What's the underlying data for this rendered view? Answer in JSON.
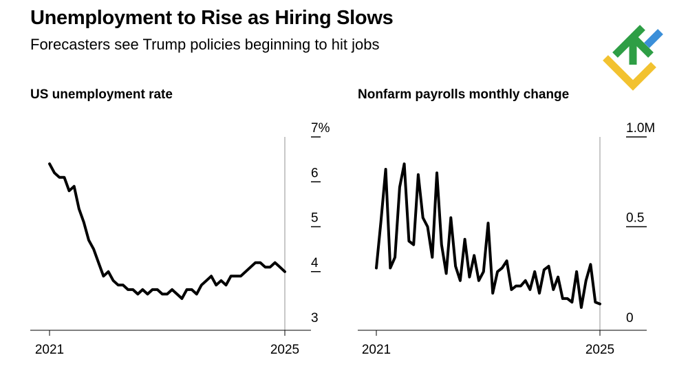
{
  "header": {
    "title": "Unemployment to Rise as Hiring Slows",
    "subtitle": "Forecasters see Trump policies beginning to hit jobs"
  },
  "logo": {
    "icon": "brand-logo-icon",
    "colors": [
      "#2e9e45",
      "#3b8fd9",
      "#f2c230"
    ]
  },
  "chart_data": [
    {
      "type": "line",
      "title": "US unemployment rate",
      "xlabel": "",
      "ylabel": "",
      "xlim": [
        2021.0,
        2025.0
      ],
      "ylim": [
        3,
        7
      ],
      "y_ticks": [
        {
          "value": 7,
          "label": "7%"
        },
        {
          "value": 6,
          "label": "6"
        },
        {
          "value": 5,
          "label": "5"
        },
        {
          "value": 4,
          "label": "4"
        },
        {
          "value": 3,
          "label": "3"
        }
      ],
      "x_ticks": [
        {
          "value": 2021.0,
          "label": "2021"
        },
        {
          "value": 2025.0,
          "label": "2025"
        }
      ],
      "reference_line": 2025.0,
      "color": "#000000",
      "series": [
        {
          "name": "Unemployment rate",
          "x": [
            2021.0,
            2021.083,
            2021.167,
            2021.25,
            2021.333,
            2021.417,
            2021.5,
            2021.583,
            2021.667,
            2021.75,
            2021.833,
            2021.917,
            2022.0,
            2022.083,
            2022.167,
            2022.25,
            2022.333,
            2022.417,
            2022.5,
            2022.583,
            2022.667,
            2022.75,
            2022.833,
            2022.917,
            2023.0,
            2023.083,
            2023.167,
            2023.25,
            2023.333,
            2023.417,
            2023.5,
            2023.583,
            2023.667,
            2023.75,
            2023.833,
            2023.917,
            2024.0,
            2024.083,
            2024.167,
            2024.25,
            2024.333,
            2024.417,
            2024.5,
            2024.583,
            2024.667,
            2024.75,
            2024.833,
            2024.917,
            2025.0
          ],
          "values": [
            6.4,
            6.2,
            6.1,
            6.1,
            5.8,
            5.9,
            5.4,
            5.1,
            4.7,
            4.5,
            4.2,
            3.9,
            4.0,
            3.8,
            3.7,
            3.7,
            3.6,
            3.6,
            3.5,
            3.6,
            3.5,
            3.6,
            3.6,
            3.5,
            3.5,
            3.6,
            3.5,
            3.4,
            3.6,
            3.6,
            3.5,
            3.7,
            3.8,
            3.9,
            3.7,
            3.8,
            3.7,
            3.9,
            3.9,
            3.9,
            4.0,
            4.1,
            4.2,
            4.2,
            4.1,
            4.1,
            4.2,
            4.1,
            4.0
          ]
        }
      ]
    },
    {
      "type": "line",
      "title": "Nonfarm payrolls monthly change",
      "xlabel": "",
      "ylabel": "",
      "xlim": [
        2021.0,
        2025.0
      ],
      "ylim": [
        0,
        1.0
      ],
      "y_ticks": [
        {
          "value": 1.0,
          "label": "1.0M"
        },
        {
          "value": 0.5,
          "label": "0.5"
        },
        {
          "value": 0,
          "label": "0"
        }
      ],
      "x_ticks": [
        {
          "value": 2021.0,
          "label": "2021"
        },
        {
          "value": 2025.0,
          "label": "2025"
        }
      ],
      "reference_line": 2025.0,
      "color": "#000000",
      "series": [
        {
          "name": "Monthly change",
          "x": [
            2021.0,
            2021.083,
            2021.167,
            2021.25,
            2021.333,
            2021.417,
            2021.5,
            2021.583,
            2021.667,
            2021.75,
            2021.833,
            2021.917,
            2022.0,
            2022.083,
            2022.167,
            2022.25,
            2022.333,
            2022.417,
            2022.5,
            2022.583,
            2022.667,
            2022.75,
            2022.833,
            2022.917,
            2023.0,
            2023.083,
            2023.167,
            2023.25,
            2023.333,
            2023.417,
            2023.5,
            2023.583,
            2023.667,
            2023.75,
            2023.833,
            2023.917,
            2024.0,
            2024.083,
            2024.167,
            2024.25,
            2024.333,
            2024.417,
            2024.5,
            2024.583,
            2024.667,
            2024.75,
            2024.833,
            2024.917,
            2025.0
          ],
          "values": [
            0.27,
            0.53,
            0.82,
            0.27,
            0.33,
            0.72,
            0.85,
            0.42,
            0.4,
            0.79,
            0.55,
            0.5,
            0.33,
            0.8,
            0.4,
            0.24,
            0.55,
            0.28,
            0.2,
            0.43,
            0.22,
            0.34,
            0.2,
            0.25,
            0.52,
            0.13,
            0.25,
            0.27,
            0.31,
            0.15,
            0.17,
            0.17,
            0.2,
            0.15,
            0.25,
            0.13,
            0.26,
            0.28,
            0.15,
            0.22,
            0.1,
            0.1,
            0.08,
            0.25,
            0.05,
            0.2,
            0.29,
            0.08,
            0.07
          ]
        }
      ]
    }
  ]
}
